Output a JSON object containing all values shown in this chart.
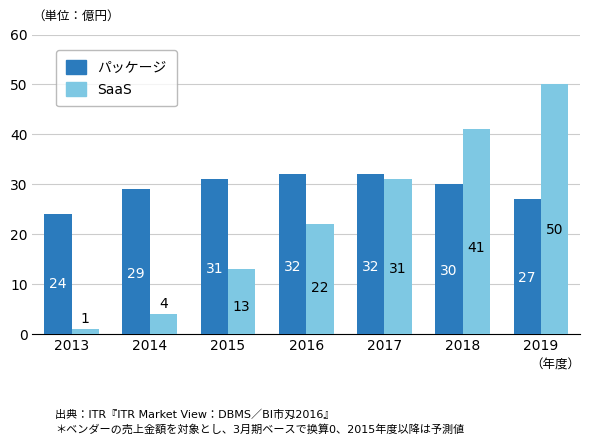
{
  "years": [
    "2013",
    "2014",
    "2015",
    "2016",
    "2017",
    "2018",
    "2019"
  ],
  "package_values": [
    24,
    29,
    31,
    32,
    32,
    30,
    27
  ],
  "saas_values": [
    1,
    4,
    13,
    22,
    31,
    41,
    50
  ],
  "package_color": "#2B7BBD",
  "saas_color": "#7EC8E3",
  "ylim": [
    0,
    60
  ],
  "yticks": [
    0,
    10,
    20,
    30,
    40,
    50,
    60
  ],
  "title_unit": "（単位：億円）",
  "xlabel": "（年度）",
  "legend_package": "パッケージ",
  "legend_saas": "SaaS",
  "footnote1": "出典：ITR『ITR Market View：DBMS／BI市刄2016』",
  "footnote2": "＊ベンダーの売上金額を対象とし、3月期ベースで换算0、2015年度以降は予測値",
  "bar_width": 0.35,
  "bg_color": "#ffffff",
  "grid_color": "#cccccc"
}
